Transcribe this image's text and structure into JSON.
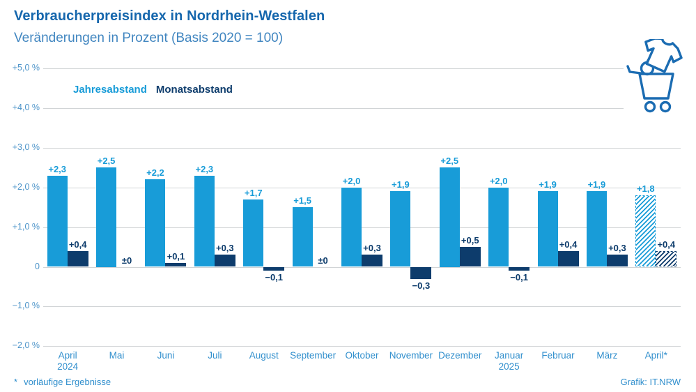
{
  "header": {
    "title": "Verbraucherpreisindex in Nordrhein-Westfalen",
    "subtitle": "Veränderungen in Prozent (Basis 2020 = 100)"
  },
  "legend": {
    "jahresabstand": "Jahresabstand",
    "monatsabstand": "Monatsabstand"
  },
  "colors": {
    "title_blue": "#1667ad",
    "subtitle_blue": "#4186c0",
    "series_light_blue": "#189cd8",
    "series_dark_navy": "#0d3c6c",
    "axis_label_blue": "#4d94c9",
    "month_label_blue": "#318fcd",
    "gridline_gray": "#d1d4d6",
    "icon_blue": "#1b6cb2"
  },
  "chart_data": {
    "type": "bar",
    "title": "Verbraucherpreisindex in Nordrhein-Westfalen",
    "subtitle": "Veränderungen in Prozent (Basis 2020 = 100)",
    "legend_position": "top-left",
    "grid": true,
    "ylim": [
      -2,
      5
    ],
    "ytick_labels": [
      "+5,0 %",
      "+4,0 %",
      "+3,0 %",
      "+2,0 %",
      "+1,0 %",
      "0",
      "−1,0 %",
      "−2,0 %"
    ],
    "ytick_values": [
      5,
      4,
      3,
      2,
      1,
      0,
      -1,
      -2
    ],
    "categories": [
      "April",
      "Mai",
      "Juni",
      "Juli",
      "August",
      "September",
      "Oktober",
      "November",
      "Dezember",
      "Januar",
      "Februar",
      "März",
      "April*"
    ],
    "category_sublabels": [
      "2024",
      "",
      "",
      "",
      "",
      "",
      "",
      "",
      "",
      "2025",
      "",
      "",
      ""
    ],
    "series": [
      {
        "name": "Jahresabstand",
        "color": "#189cd8",
        "values": [
          2.3,
          2.5,
          2.2,
          2.3,
          1.7,
          1.5,
          2.0,
          1.9,
          2.5,
          2.0,
          1.9,
          1.9,
          1.8
        ],
        "labels": [
          "+2,3",
          "+2,5",
          "+2,2",
          "+2,3",
          "+1,7",
          "+1,5",
          "+2,0",
          "+1,9",
          "+2,5",
          "+2,0",
          "+1,9",
          "+1,9",
          "+1,8"
        ]
      },
      {
        "name": "Monatsabstand",
        "color": "#0d3c6c",
        "values": [
          0.4,
          0,
          0.1,
          0.3,
          -0.1,
          0,
          0.3,
          -0.3,
          0.5,
          -0.1,
          0.4,
          0.3,
          0.4
        ],
        "labels": [
          "+0,4",
          "±0",
          "+0,1",
          "+0,3",
          "−0,1",
          "±0",
          "+0,3",
          "−0,3",
          "+0,5",
          "−0,1",
          "+0,4",
          "+0,3",
          "+0,4"
        ]
      }
    ],
    "provisional_last_category": true
  },
  "footer": {
    "footnote_mark": "*",
    "footnote_text": "vorläufige Ergebnisse",
    "credit": "Grafik: IT.NRW"
  },
  "icon": {
    "name": "shopping-cart-with-shirt"
  }
}
